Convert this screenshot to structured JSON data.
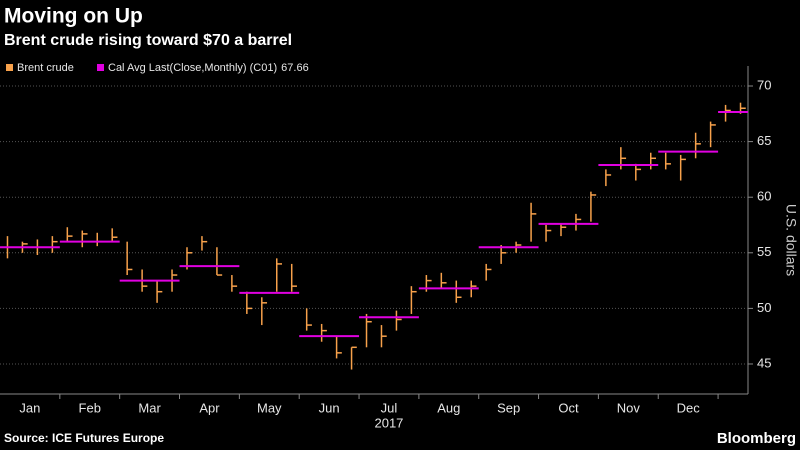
{
  "chart_data": {
    "type": "ohlc",
    "title": "Moving on Up",
    "subtitle": "Brent crude rising toward $70 a barrel",
    "y_label": "U.S. dollars",
    "year_label": "2017",
    "source": "Source: ICE Futures Europe",
    "brand": "Bloomberg",
    "categories": [
      null,
      "Jan",
      null,
      null,
      null,
      "Feb",
      null,
      null,
      null,
      "Mar",
      null,
      null,
      null,
      "Apr",
      null,
      null,
      null,
      "May",
      null,
      null,
      null,
      "Jun",
      null,
      null,
      null,
      "Jul",
      null,
      null,
      null,
      "Aug",
      null,
      null,
      null,
      "Sep",
      null,
      null,
      null,
      "Oct",
      null,
      null,
      null,
      "Nov",
      null,
      null,
      null,
      "Dec",
      null,
      null,
      null,
      null
    ],
    "series": [
      {
        "name": "Brent crude",
        "color": "#f7a14b",
        "low": [
          54.5,
          55,
          54.8,
          55,
          56,
          55.5,
          55.6,
          56,
          53,
          51.5,
          50.5,
          51.5,
          53.5,
          55.2,
          53,
          51.5,
          49.5,
          48.5,
          51.5,
          51.5,
          48,
          47,
          45.5,
          44.5,
          46.5,
          46.5,
          48,
          49.5,
          51.5,
          51.8,
          50.5,
          51,
          52.5,
          54,
          55,
          56,
          56,
          56.5,
          57,
          57.8,
          61,
          62.5,
          61.5,
          62.5,
          62.5,
          61.5,
          63.5,
          64.5,
          66.8,
          67.5
        ],
        "high": [
          56.5,
          56,
          56.2,
          56.5,
          57.3,
          57,
          56.8,
          57.2,
          56,
          53.5,
          52.5,
          53.5,
          55.5,
          56.5,
          55.5,
          53,
          51.5,
          51,
          54.5,
          54,
          50,
          48.6,
          47.5,
          46.5,
          49.5,
          48.5,
          49.8,
          52,
          53,
          53.2,
          52.5,
          52.5,
          54,
          55.7,
          56,
          59.5,
          57.5,
          57.6,
          58.5,
          60.5,
          62.5,
          64.5,
          63,
          64,
          64,
          63.8,
          65.8,
          66.8,
          68.3,
          68.5
        ],
        "close": [
          55.5,
          55.8,
          55.5,
          56,
          56.5,
          56.7,
          56,
          56.4,
          53.5,
          52,
          51.5,
          53,
          55,
          56,
          53,
          52,
          50,
          50.5,
          54,
          52,
          48.5,
          48,
          46,
          46.5,
          48.8,
          47.5,
          49,
          51.5,
          52.5,
          52.3,
          51,
          52,
          53.5,
          55,
          55.7,
          58.5,
          57,
          57.3,
          58,
          60.2,
          62,
          63.5,
          62.5,
          63.5,
          63,
          63.4,
          64.8,
          66.5,
          67.8,
          68
        ]
      }
    ],
    "monthly_avg": {
      "name": "Cal Avg Last(Close,Monthly) (C01)",
      "color": "#e100e1",
      "values": [
        55.5,
        56.0,
        52.5,
        53.8,
        51.4,
        47.5,
        49.2,
        51.8,
        55.5,
        57.6,
        62.9,
        64.1,
        67.66
      ]
    },
    "ylim": [
      42.3,
      71.8
    ],
    "yticks": [
      45,
      50,
      55,
      60,
      65,
      70
    ],
    "grid": true
  }
}
